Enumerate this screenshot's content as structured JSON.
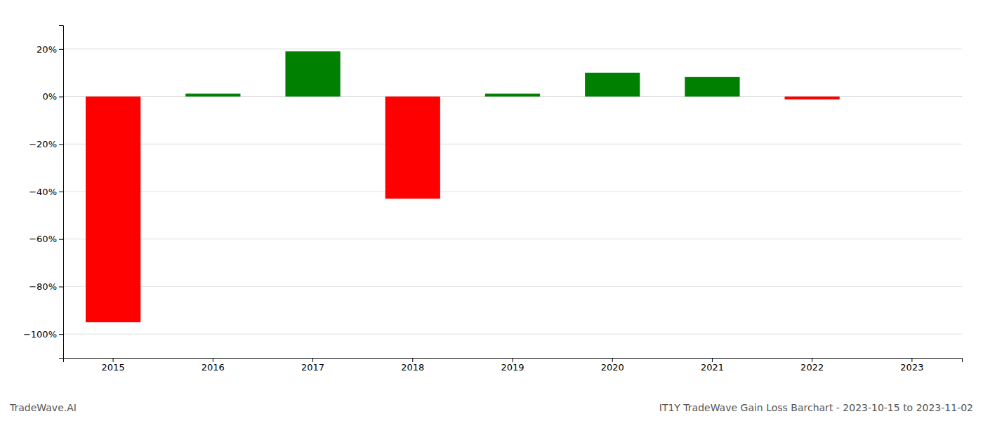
{
  "chart_data": {
    "type": "bar",
    "categories": [
      "2015",
      "2016",
      "2017",
      "2018",
      "2019",
      "2020",
      "2021",
      "2022",
      "2023"
    ],
    "values": [
      -0.95,
      0.012,
      0.19,
      -0.43,
      0.012,
      0.1,
      0.082,
      -0.012,
      0.0
    ],
    "colors": [
      "#ff0000",
      "#008000",
      "#008000",
      "#ff0000",
      "#008000",
      "#008000",
      "#008000",
      "#ff0000",
      "#008000"
    ],
    "ylim": [
      -1.1,
      0.3
    ],
    "yticks": [
      {
        "value": -1.0,
        "label": "−100%"
      },
      {
        "value": -0.8,
        "label": "−80%"
      },
      {
        "value": -0.6,
        "label": "−60%"
      },
      {
        "value": -0.4,
        "label": "−40%"
      },
      {
        "value": -0.2,
        "label": "−20%"
      },
      {
        "value": 0.0,
        "label": "0%"
      },
      {
        "value": 0.2,
        "label": "20%"
      }
    ],
    "grid": true,
    "annotations": [
      "TradeWave.AI",
      "IT1Y TradeWave Gain Loss Barchart - 2023-10-15 to 2023-11-02"
    ]
  }
}
